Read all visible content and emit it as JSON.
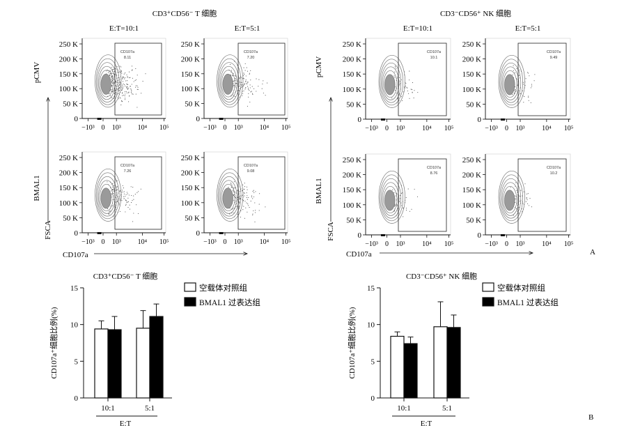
{
  "figure": {
    "panel_a_label": "A",
    "panel_b_label": "B"
  },
  "flow": {
    "t_title": "CD3⁺CD56⁻ T 细胞",
    "nk_title": "CD3⁻CD56⁺ NK 细胞",
    "ratio_labels": [
      "E:T=10:1",
      "E:T=5:1"
    ],
    "row_labels": [
      "pCMV",
      "BMAL1"
    ],
    "y_axis_label": "FSCA",
    "x_axis_label": "CD107a",
    "y_ticks": [
      "0",
      "50 K",
      "100 K",
      "150 K",
      "200 K",
      "250 K"
    ],
    "x_ticks": [
      "−10³",
      "0",
      "10³",
      "10⁴",
      "10⁵"
    ],
    "gate_label": "CD107a",
    "gate_values": {
      "t": [
        [
          "8.11",
          "7.20"
        ],
        [
          "7.26",
          "9.08"
        ]
      ],
      "nk": [
        [
          "10.1",
          "9.49"
        ],
        [
          "8.76",
          "10.2"
        ]
      ]
    }
  },
  "chart_data": [
    {
      "type": "bar",
      "title": "CD3⁺CD56⁻ T 细胞",
      "categories": [
        "10:1",
        "5:1"
      ],
      "xlabel": "E:T",
      "ylabel": "CD107a⁺细胞比例(%)",
      "ylim": [
        0,
        15
      ],
      "yticks": [
        "0",
        "5",
        "10",
        "15"
      ],
      "legend_position": "top-right",
      "series": [
        {
          "name": "空载体对照组",
          "values": [
            9.4,
            9.5
          ],
          "errors": [
            1.1,
            2.4
          ],
          "color": "#ffffff"
        },
        {
          "name": "BMAL1 过表达组",
          "values": [
            9.3,
            11.1
          ],
          "errors": [
            1.8,
            1.7
          ],
          "color": "#000000"
        }
      ]
    },
    {
      "type": "bar",
      "title": "CD3⁻CD56⁺ NK 细胞",
      "categories": [
        "10:1",
        "5:1"
      ],
      "xlabel": "E:T",
      "ylabel": "CD107a⁺细胞比例(%)",
      "ylim": [
        0,
        15
      ],
      "yticks": [
        "0",
        "5",
        "10",
        "15"
      ],
      "legend_position": "top-right",
      "series": [
        {
          "name": "空载体对照组",
          "values": [
            8.4,
            9.7
          ],
          "errors": [
            0.6,
            3.4
          ],
          "color": "#ffffff"
        },
        {
          "name": "BMAL1 过表达组",
          "values": [
            7.4,
            9.6
          ],
          "errors": [
            0.9,
            1.7
          ],
          "color": "#000000"
        }
      ]
    }
  ]
}
